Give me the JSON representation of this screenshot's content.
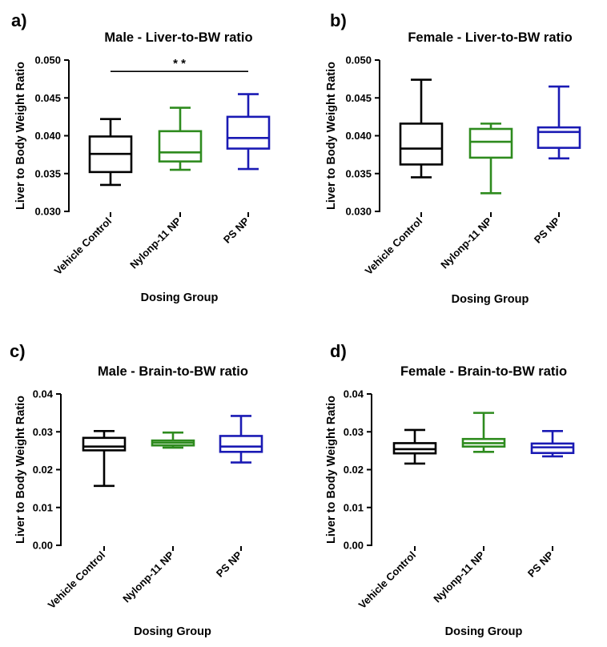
{
  "figure": {
    "xlabel": "Dosing Group"
  },
  "chart_data": [
    {
      "type": "box",
      "panel": "a)",
      "title": "Male - Liver-to-BW ratio",
      "ylabel": "Liver to Body Weight Ratio",
      "xlabel": "Dosing Group",
      "ylim": [
        0.03,
        0.05
      ],
      "yticks": [
        "0.030",
        "0.035",
        "0.040",
        "0.045",
        "0.050"
      ],
      "categories": [
        "Vehicle Control",
        "Nylonp-11 NP",
        "PS NP"
      ],
      "colors": [
        "#000000",
        "#2e8b1e",
        "#1a1ab4"
      ],
      "boxes": [
        {
          "min": 0.0335,
          "q1": 0.0352,
          "median": 0.0376,
          "q3": 0.0399,
          "max": 0.0422
        },
        {
          "min": 0.0355,
          "q1": 0.0366,
          "median": 0.0378,
          "q3": 0.0406,
          "max": 0.0437
        },
        {
          "min": 0.0356,
          "q1": 0.0383,
          "median": 0.0397,
          "q3": 0.0425,
          "max": 0.0455
        }
      ],
      "significance": {
        "from": 0,
        "to": 2,
        "label": "* *",
        "y": 0.0485
      }
    },
    {
      "type": "box",
      "panel": "b)",
      "title": "Female - Liver-to-BW ratio",
      "ylabel": "Liver to Body Weight Ratio",
      "xlabel": "Dosing Group",
      "ylim": [
        0.03,
        0.05
      ],
      "yticks": [
        "0.030",
        "0.035",
        "0.040",
        "0.045",
        "0.050"
      ],
      "categories": [
        "Vehicle Control",
        "Nylonp-11 NP",
        "PS NP"
      ],
      "colors": [
        "#000000",
        "#2e8b1e",
        "#1a1ab4"
      ],
      "boxes": [
        {
          "min": 0.0345,
          "q1": 0.0362,
          "median": 0.0383,
          "q3": 0.0416,
          "max": 0.0474
        },
        {
          "min": 0.0324,
          "q1": 0.0371,
          "median": 0.0392,
          "q3": 0.0409,
          "max": 0.0416
        },
        {
          "min": 0.037,
          "q1": 0.0384,
          "median": 0.0405,
          "q3": 0.0411,
          "max": 0.0465
        }
      ]
    },
    {
      "type": "box",
      "panel": "c)",
      "title": "Male - Brain-to-BW ratio",
      "ylabel": "Liver to Body Weight Ratio",
      "xlabel": "Dosing Group",
      "ylim": [
        0.0,
        0.04
      ],
      "yticks": [
        "0.00",
        "0.01",
        "0.02",
        "0.03",
        "0.04"
      ],
      "categories": [
        "Vehicle Control",
        "Nylonp-11 NP",
        "PS NP"
      ],
      "colors": [
        "#000000",
        "#2e8b1e",
        "#1a1ab4"
      ],
      "boxes": [
        {
          "min": 0.0157,
          "q1": 0.0251,
          "median": 0.0261,
          "q3": 0.0284,
          "max": 0.0302
        },
        {
          "min": 0.0258,
          "q1": 0.0264,
          "median": 0.0271,
          "q3": 0.0277,
          "max": 0.0298
        },
        {
          "min": 0.0219,
          "q1": 0.0247,
          "median": 0.0261,
          "q3": 0.0289,
          "max": 0.0342
        }
      ]
    },
    {
      "type": "box",
      "panel": "d)",
      "title": "Female - Brain-to-BW ratio",
      "ylabel": "Liver to Body Weight Ratio",
      "xlabel": "Dosing Group",
      "ylim": [
        0.0,
        0.04
      ],
      "yticks": [
        "0.00",
        "0.01",
        "0.02",
        "0.03",
        "0.04"
      ],
      "categories": [
        "Vehicle Control",
        "Nylonp-11 NP",
        "PS NP"
      ],
      "colors": [
        "#000000",
        "#2e8b1e",
        "#1a1ab4"
      ],
      "boxes": [
        {
          "min": 0.0216,
          "q1": 0.0243,
          "median": 0.0254,
          "q3": 0.027,
          "max": 0.0305
        },
        {
          "min": 0.0247,
          "q1": 0.0261,
          "median": 0.027,
          "q3": 0.0281,
          "max": 0.035
        },
        {
          "min": 0.0235,
          "q1": 0.0244,
          "median": 0.0259,
          "q3": 0.0269,
          "max": 0.0302
        }
      ]
    }
  ]
}
